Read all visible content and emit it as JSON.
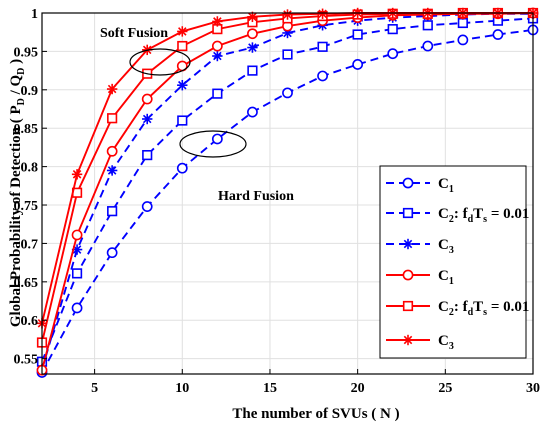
{
  "chart_data": {
    "type": "line",
    "title": "",
    "xlabel": "The number of SVUs ( N )",
    "ylabel": "Global Probability of Detection ( P_D / Q_D )",
    "xlim": [
      2,
      30
    ],
    "ylim": [
      0.53,
      1.0
    ],
    "xticks": [
      5,
      10,
      15,
      20,
      25,
      30
    ],
    "yticks": [
      0.55,
      0.6,
      0.65,
      0.7,
      0.75,
      0.8,
      0.85,
      0.9,
      0.95,
      1
    ],
    "grid": true,
    "legend_position": "right",
    "annotations": [
      {
        "text": "Soft Fusion"
      },
      {
        "text": "Hard Fusion"
      }
    ],
    "x": [
      2,
      4,
      6,
      8,
      10,
      12,
      14,
      16,
      18,
      20,
      22,
      24,
      26,
      28,
      30
    ],
    "series": [
      {
        "name": "C1",
        "legend_main": "C",
        "legend_sub": "1",
        "legend_suffix": "",
        "color": "#0000ff",
        "dash": true,
        "marker": "circle",
        "values": [
          0.532,
          0.616,
          0.688,
          0.748,
          0.798,
          0.836,
          0.871,
          0.896,
          0.918,
          0.933,
          0.947,
          0.957,
          0.965,
          0.972,
          0.978
        ]
      },
      {
        "name": "C2: fdTs = 0.01",
        "legend_main": "C",
        "legend_sub": "2",
        "legend_suffix": ": f",
        "legend_sub2": "d",
        "legend_mid": "T",
        "legend_sub3": "s",
        "legend_tail": " = 0.01",
        "color": "#0000ff",
        "dash": true,
        "marker": "square",
        "values": [
          0.546,
          0.661,
          0.742,
          0.815,
          0.86,
          0.895,
          0.925,
          0.946,
          0.956,
          0.972,
          0.979,
          0.984,
          0.987,
          0.99,
          0.993
        ]
      },
      {
        "name": "C3",
        "legend_main": "C",
        "legend_sub": "3",
        "legend_suffix": "",
        "color": "#0000ff",
        "dash": true,
        "marker": "star",
        "values": [
          0.536,
          0.692,
          0.795,
          0.862,
          0.906,
          0.944,
          0.955,
          0.974,
          0.984,
          0.99,
          0.994,
          0.996,
          0.998,
          0.999,
          0.999
        ]
      },
      {
        "name": "C1",
        "legend_main": "C",
        "legend_sub": "1",
        "legend_suffix": "",
        "color": "#ff0000",
        "dash": false,
        "marker": "circle",
        "values": [
          0.535,
          0.711,
          0.82,
          0.888,
          0.931,
          0.957,
          0.973,
          0.983,
          0.99,
          0.994,
          0.997,
          0.998,
          0.999,
          0.999,
          1.0
        ]
      },
      {
        "name": "C2: fdTs = 0.01",
        "legend_main": "C",
        "legend_sub": "2",
        "legend_suffix": ": f",
        "legend_sub2": "d",
        "legend_mid": "T",
        "legend_sub3": "s",
        "legend_tail": " = 0.01",
        "color": "#ff0000",
        "dash": false,
        "marker": "square",
        "values": [
          0.571,
          0.766,
          0.863,
          0.921,
          0.957,
          0.979,
          0.988,
          0.993,
          0.996,
          0.998,
          0.999,
          0.999,
          1.0,
          1.0,
          1.0
        ]
      },
      {
        "name": "C3",
        "legend_main": "C",
        "legend_sub": "3",
        "legend_suffix": "",
        "color": "#ff0000",
        "dash": false,
        "marker": "star",
        "values": [
          0.596,
          0.79,
          0.901,
          0.952,
          0.976,
          0.989,
          0.995,
          0.998,
          0.999,
          1.0,
          1.0,
          1.0,
          1.0,
          1.0,
          1.0
        ]
      }
    ]
  }
}
